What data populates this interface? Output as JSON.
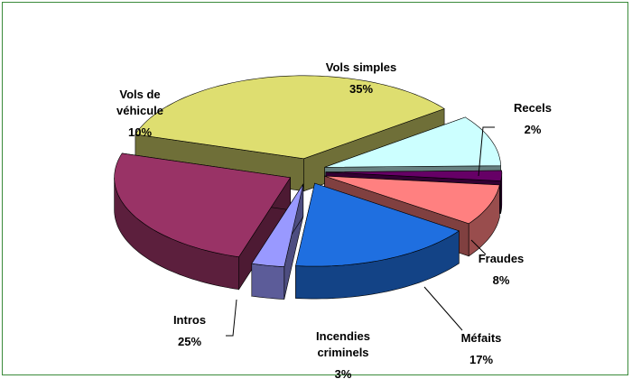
{
  "chart_data": {
    "type": "pie3d",
    "categories": [
      "Vols simples",
      "Vols de véhicule",
      "Recels",
      "Fraudes",
      "Méfaits",
      "Incendies criminels",
      "Intros"
    ],
    "values": [
      35,
      10,
      2,
      8,
      17,
      3,
      25
    ],
    "value_labels": [
      "35%",
      "10%",
      "2%",
      "8%",
      "17%",
      "3%",
      "25%"
    ],
    "colors": [
      "#dede70",
      "#ccffff",
      "#660066",
      "#ff8080",
      "#1f6fe0",
      "#9999ff",
      "#993366"
    ]
  }
}
